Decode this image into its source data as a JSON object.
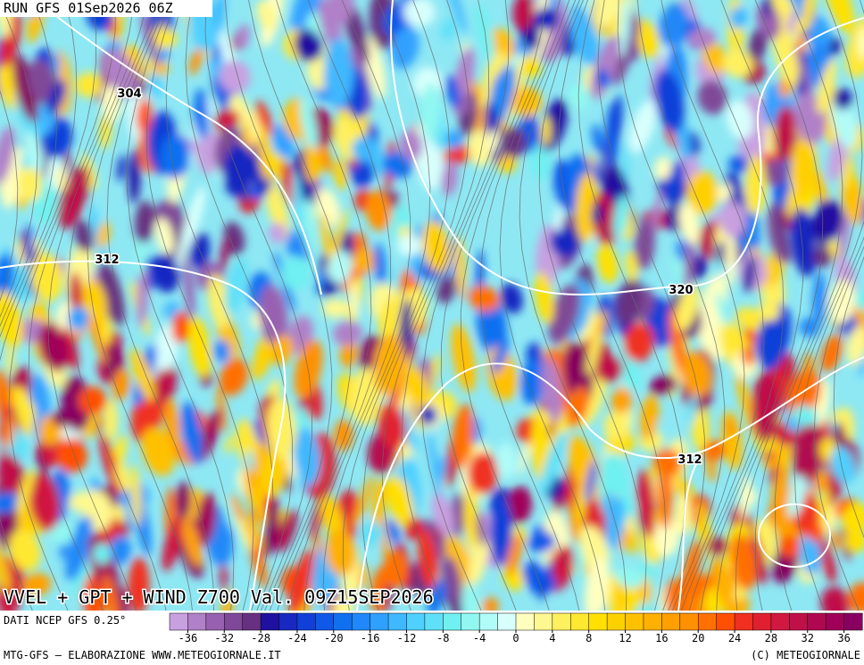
{
  "header": {
    "run": "RUN GFS 01Sep2026 06Z"
  },
  "map": {
    "title": "VVEL + GPT + WIND Z700 Val. 09Z15SEP2026",
    "contour_labels": [
      304,
      312,
      320,
      312
    ]
  },
  "colorbar": {
    "label": "DATI NCEP GFS 0.25°",
    "range": [
      -38,
      38
    ],
    "ticks": [
      -36,
      -32,
      -28,
      -24,
      -20,
      -16,
      -12,
      -8,
      -4,
      0,
      4,
      8,
      12,
      16,
      20,
      24,
      28,
      32,
      36
    ],
    "colors": [
      "#c8a0e0",
      "#b080c8",
      "#9860b0",
      "#804898",
      "#683080",
      "#2010a0",
      "#1828c0",
      "#1040d8",
      "#1058e8",
      "#1070f0",
      "#2088f8",
      "#30a0ff",
      "#40b8ff",
      "#50d0ff",
      "#60e0f8",
      "#70f0f0",
      "#90f8f0",
      "#b0fcf8",
      "#d8fffc",
      "#ffffc0",
      "#fff890",
      "#fff060",
      "#ffe830",
      "#ffe000",
      "#ffd000",
      "#ffc000",
      "#ffb000",
      "#ffa000",
      "#ff9000",
      "#ff7000",
      "#ff5000",
      "#f03020",
      "#e02030",
      "#d01840",
      "#c01048",
      "#b00850",
      "#a00058",
      "#880060"
    ]
  },
  "footer": {
    "left": "MTG-GFS — ELABORAZIONE WWW.METEOGIORNALE.IT",
    "right": "(C) METEOGIORNALE"
  }
}
